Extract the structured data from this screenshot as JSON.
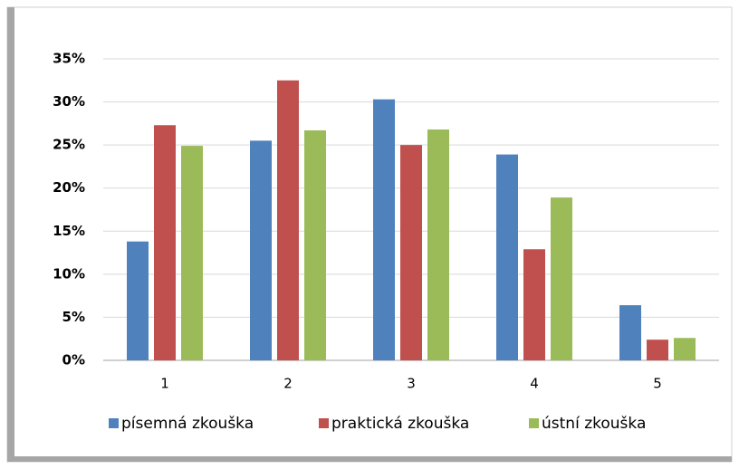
{
  "chart_data": {
    "type": "bar",
    "categories": [
      "1",
      "2",
      "3",
      "4",
      "5"
    ],
    "series": [
      {
        "name": "písemná zkouška",
        "color": "#4f81bd",
        "values": [
          13.8,
          25.5,
          30.3,
          23.9,
          6.4
        ]
      },
      {
        "name": "praktická zkouška",
        "color": "#c0504d",
        "values": [
          27.3,
          32.5,
          25.0,
          12.9,
          2.4
        ]
      },
      {
        "name": "ústní zkouška",
        "color": "#9bbb59",
        "values": [
          24.9,
          26.7,
          26.8,
          18.9,
          2.6
        ]
      }
    ],
    "ylim": [
      0,
      35
    ],
    "yticks": [
      {
        "value": 0,
        "label": "0%"
      },
      {
        "value": 5,
        "label": "5%"
      },
      {
        "value": 10,
        "label": "10%"
      },
      {
        "value": 15,
        "label": "15%"
      },
      {
        "value": 20,
        "label": "20%"
      },
      {
        "value": 25,
        "label": "25%"
      },
      {
        "value": 30,
        "label": "30%"
      },
      {
        "value": 35,
        "label": "35%"
      }
    ],
    "grid": true,
    "legend": "bottom"
  }
}
